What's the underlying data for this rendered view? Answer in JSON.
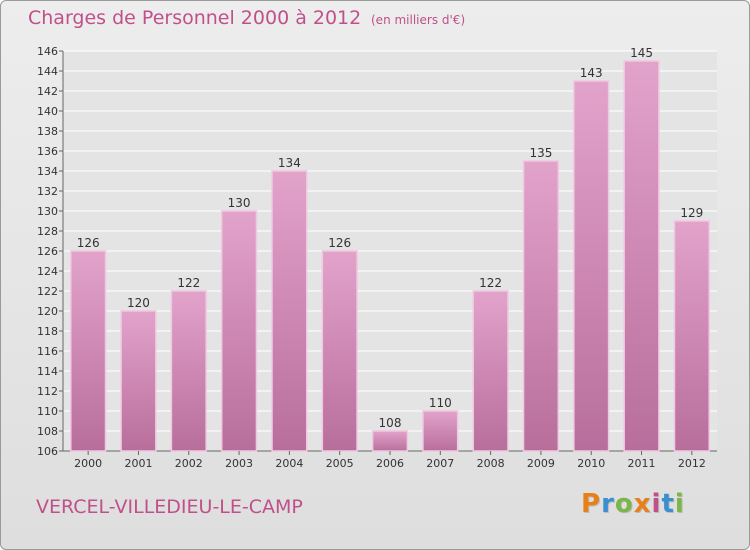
{
  "title": "Charges de Personnel 2000 à 2012",
  "subtitle": "(en milliers d'€)",
  "commune": "VERCEL-VILLEDIEU-LE-CAMP",
  "brand": {
    "letters": [
      "P",
      "r",
      "o",
      "x",
      "i",
      "t",
      "i"
    ],
    "colors": [
      "#e8801a",
      "#3a8fd0",
      "#7ab648",
      "#e8801a",
      "#c0508a",
      "#3a8fd0",
      "#7ab648"
    ]
  },
  "colors": {
    "bar_top": "#e2a3cb",
    "bar_bottom": "#b86e9b",
    "bar_edge": "#f0c8e0",
    "axis_text": "#333333",
    "grid": "#ffffff"
  },
  "chart_data": {
    "type": "bar",
    "categories": [
      "2000",
      "2001",
      "2002",
      "2003",
      "2004",
      "2005",
      "2006",
      "2007",
      "2008",
      "2009",
      "2010",
      "2011",
      "2012"
    ],
    "values": [
      126,
      120,
      122,
      130,
      134,
      126,
      108,
      110,
      122,
      135,
      143,
      145,
      129
    ],
    "ylim": [
      106,
      146
    ],
    "ytick_step": 2,
    "grid": true,
    "data_labels": true
  }
}
